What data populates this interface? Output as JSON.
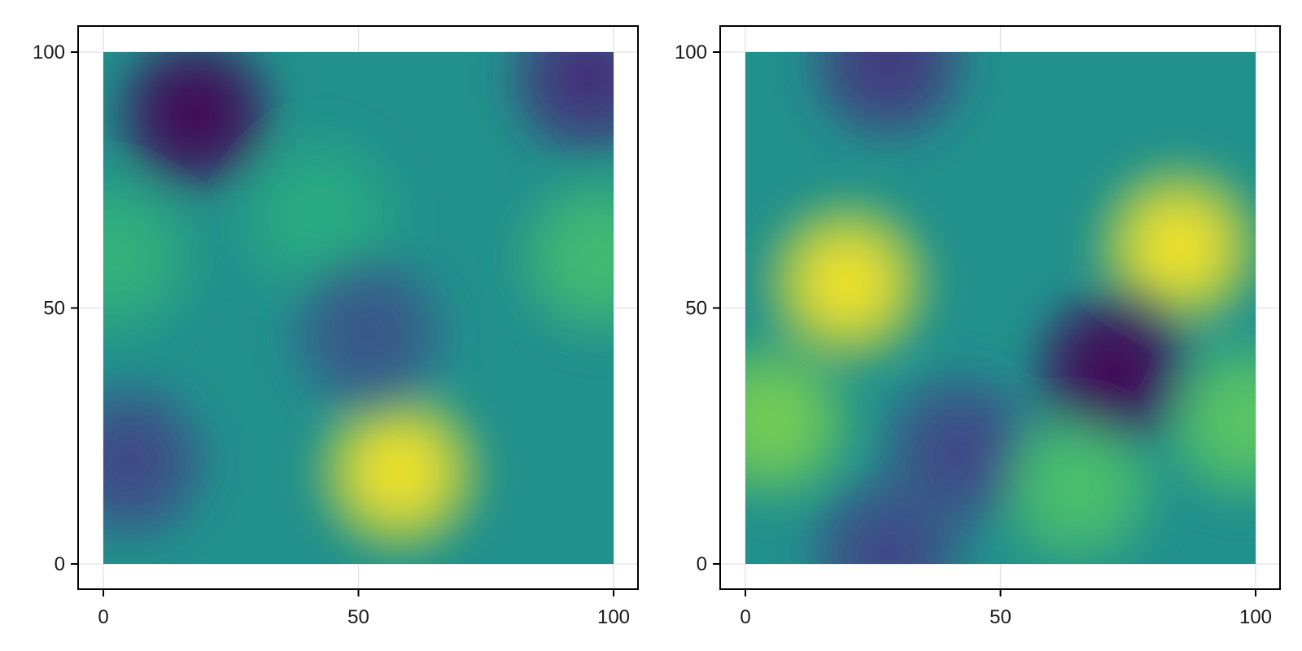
{
  "chart_data": [
    {
      "type": "heatmap",
      "title": "",
      "xlabel": "",
      "ylabel": "",
      "xlim": [
        0,
        100
      ],
      "ylim": [
        0,
        100
      ],
      "x_ticks": [
        "0",
        "50",
        "100"
      ],
      "y_ticks": [
        "0",
        "50",
        "100"
      ],
      "grid": true,
      "colormap": "viridis",
      "color_range": [
        0,
        1
      ],
      "peaks": [
        {
          "x": 18,
          "y": 88,
          "value": 0.0
        },
        {
          "x": 95,
          "y": 95,
          "value": 0.12
        },
        {
          "x": 58,
          "y": 18,
          "value": 1.0
        },
        {
          "x": 42,
          "y": 68,
          "value": 0.62
        },
        {
          "x": 97,
          "y": 60,
          "value": 0.7
        },
        {
          "x": 52,
          "y": 45,
          "value": 0.25
        },
        {
          "x": 5,
          "y": 20,
          "value": 0.2
        },
        {
          "x": 2,
          "y": 60,
          "value": 0.65
        }
      ]
    },
    {
      "type": "heatmap",
      "title": "",
      "xlabel": "",
      "ylabel": "",
      "xlim": [
        0,
        100
      ],
      "ylim": [
        0,
        100
      ],
      "x_ticks": [
        "0",
        "50",
        "100"
      ],
      "y_ticks": [
        "0",
        "50",
        "100"
      ],
      "grid": true,
      "colormap": "viridis",
      "color_range": [
        0,
        1
      ],
      "peaks": [
        {
          "x": 20,
          "y": 55,
          "value": 1.0
        },
        {
          "x": 85,
          "y": 62,
          "value": 1.0
        },
        {
          "x": 72,
          "y": 38,
          "value": 0.0
        },
        {
          "x": 28,
          "y": 98,
          "value": 0.15
        },
        {
          "x": 42,
          "y": 22,
          "value": 0.2
        },
        {
          "x": 28,
          "y": 2,
          "value": 0.2
        },
        {
          "x": 5,
          "y": 28,
          "value": 0.8
        },
        {
          "x": 65,
          "y": 15,
          "value": 0.72
        },
        {
          "x": 98,
          "y": 28,
          "value": 0.75
        }
      ]
    }
  ]
}
